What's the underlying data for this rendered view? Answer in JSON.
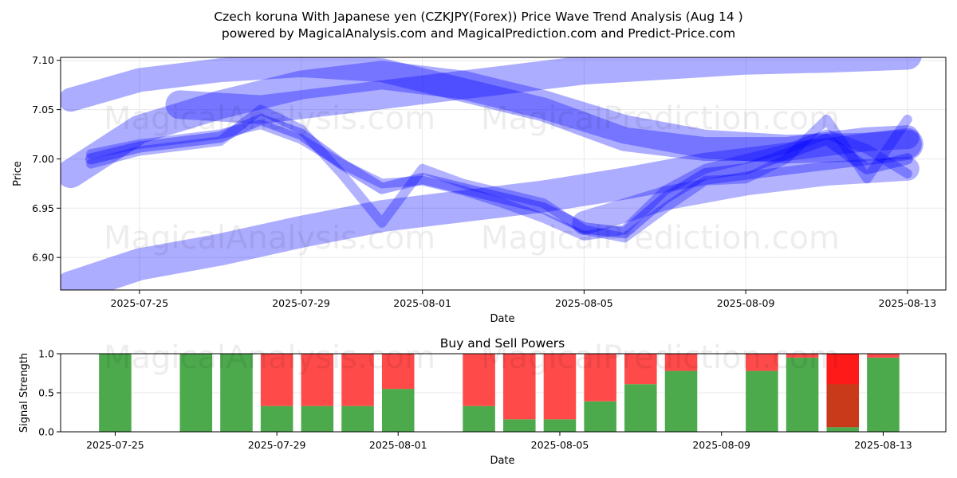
{
  "header": {
    "title_line1": "Czech koruna With Japanese yen (CZKJPY(Forex)) Price Wave Trend Analysis (Aug 14 )",
    "title_line2": "powered by MagicalAnalysis.com and MagicalPrediction.com and Predict-Price.com"
  },
  "watermarks": [
    "MagicalAnalysis.com",
    "MagicalPrediction.com"
  ],
  "colors": {
    "band": "#0000ff",
    "buy": "#4caa4c",
    "sell": "#ff4a4a",
    "sell_strong": "#ff1a1a",
    "mixed": "#c83a1a",
    "grid": "#e8e8e8"
  },
  "chart_data": [
    {
      "type": "line",
      "title": "",
      "xlabel": "Date",
      "ylabel": "Price",
      "ylim": [
        6.867,
        7.103
      ],
      "xlim_days": [
        -1.95,
        19.95
      ],
      "x_origin_date": "2025-07-25",
      "x_ticks": [
        {
          "day": 0,
          "label": "2025-07-25"
        },
        {
          "day": 4,
          "label": "2025-07-29"
        },
        {
          "day": 7,
          "label": "2025-08-01"
        },
        {
          "day": 11,
          "label": "2025-08-05"
        },
        {
          "day": 15,
          "label": "2025-08-09"
        },
        {
          "day": 19,
          "label": "2025-08-13"
        }
      ],
      "y_ticks": [
        6.9,
        6.95,
        7.0,
        7.05,
        7.1
      ],
      "y_tick_labels": [
        "6.90",
        "6.95",
        "7.00",
        "7.05",
        "7.10"
      ],
      "series": [
        {
          "name": "wave-band-upper",
          "width": 30,
          "opacity": 0.32,
          "x": [
            -1.7,
            0,
            2,
            4,
            6,
            8,
            10,
            12,
            14,
            16,
            18,
            19
          ],
          "y": [
            7.06,
            7.08,
            7.09,
            7.095,
            7.09,
            7.07,
            7.05,
            7.02,
            7.01,
            7.01,
            7.02,
            7.022
          ]
        },
        {
          "name": "wave-band-mid",
          "width": 36,
          "opacity": 0.32,
          "x": [
            -1.7,
            0,
            2,
            4,
            6,
            8,
            10,
            12,
            14,
            16,
            18,
            19
          ],
          "y": [
            6.985,
            7.03,
            7.055,
            7.075,
            7.085,
            7.075,
            7.055,
            7.03,
            7.015,
            7.01,
            7.012,
            7.015
          ]
        },
        {
          "name": "wave-band-upper-right",
          "width": 36,
          "opacity": 0.32,
          "x": [
            1,
            3,
            5,
            7,
            9,
            11,
            13,
            15,
            17,
            19
          ],
          "y": [
            7.055,
            7.05,
            7.06,
            7.07,
            7.08,
            7.09,
            7.095,
            7.1,
            7.102,
            7.105
          ]
        },
        {
          "name": "wave-band-lower",
          "width": 40,
          "opacity": 0.32,
          "x": [
            -1.7,
            0,
            2,
            4,
            6,
            8,
            10,
            12,
            14,
            16,
            18,
            19
          ],
          "y": [
            6.87,
            6.893,
            6.908,
            6.926,
            6.942,
            6.952,
            6.962,
            6.975,
            6.99,
            7.0,
            7.01,
            7.015
          ]
        },
        {
          "name": "wave-band-low-right",
          "width": 30,
          "opacity": 0.3,
          "x": [
            11,
            13,
            15,
            17,
            19
          ],
          "y": [
            6.935,
            6.96,
            6.975,
            6.985,
            6.99
          ]
        },
        {
          "name": "price-core-1",
          "width": 14,
          "opacity": 0.35,
          "x": [
            -1.2,
            0,
            2,
            3,
            4,
            5,
            6,
            7,
            8,
            9,
            10,
            11,
            12,
            13,
            14,
            15,
            16,
            17,
            18,
            19
          ],
          "y": [
            7.0,
            7.012,
            7.022,
            7.04,
            7.025,
            6.995,
            6.97,
            6.98,
            6.97,
            6.96,
            6.95,
            6.93,
            6.925,
            6.96,
            6.985,
            6.99,
            7.005,
            7.02,
            6.99,
            7.0
          ]
        },
        {
          "name": "price-core-2",
          "width": 12,
          "opacity": 0.3,
          "x": [
            -1.2,
            0,
            2,
            3,
            4,
            5,
            6,
            7,
            8,
            9,
            10,
            11,
            12,
            13,
            14,
            15,
            16,
            17,
            18,
            19
          ],
          "y": [
            6.995,
            7.008,
            7.018,
            7.05,
            7.03,
            6.985,
            6.935,
            6.99,
            6.975,
            6.965,
            6.955,
            6.928,
            6.92,
            6.95,
            6.978,
            6.98,
            7.0,
            7.04,
            6.98,
            7.04
          ]
        },
        {
          "name": "price-core-3",
          "width": 12,
          "opacity": 0.3,
          "x": [
            -1.2,
            0,
            2,
            3,
            4,
            5,
            6,
            7,
            8,
            9,
            10,
            11,
            12,
            13,
            14,
            15,
            16,
            17,
            18,
            19
          ],
          "y": [
            7.005,
            7.015,
            7.025,
            7.035,
            7.02,
            6.995,
            6.975,
            6.978,
            6.968,
            6.955,
            6.94,
            6.922,
            6.928,
            6.968,
            6.99,
            7.0,
            7.01,
            7.025,
            7.01,
            6.985
          ]
        }
      ]
    },
    {
      "type": "bar",
      "title": "Buy and Sell Powers",
      "xlabel": "Date",
      "ylabel": "Signal Strength",
      "ylim": [
        0,
        1
      ],
      "xlim_days": [
        -1.95,
        19.95
      ],
      "x_ticks": [
        {
          "day": 0,
          "label": "2025-07-25"
        },
        {
          "day": 4,
          "label": "2025-07-29"
        },
        {
          "day": 7,
          "label": "2025-08-01"
        },
        {
          "day": 11,
          "label": "2025-08-05"
        },
        {
          "day": 15,
          "label": "2025-08-09"
        },
        {
          "day": 19,
          "label": "2025-08-13"
        }
      ],
      "y_ticks": [
        0.0,
        0.5,
        1.0
      ],
      "y_tick_labels": [
        "0.0",
        "0.5",
        "1.0"
      ],
      "bars": [
        {
          "day": -0.6,
          "buy": 1.0,
          "sell": 0.0
        },
        {
          "day": 1.4,
          "buy": 1.0,
          "sell": 0.0
        },
        {
          "day": 2.4,
          "buy": 1.0,
          "sell": 0.0
        },
        {
          "day": 3.4,
          "buy": 0.33,
          "sell": 0.67
        },
        {
          "day": 4.4,
          "buy": 0.33,
          "sell": 0.67
        },
        {
          "day": 5.4,
          "buy": 0.33,
          "sell": 0.67
        },
        {
          "day": 6.4,
          "buy": 0.55,
          "sell": 0.45
        },
        {
          "day": 8.4,
          "buy": 0.33,
          "sell": 0.67
        },
        {
          "day": 9.4,
          "buy": 0.16,
          "sell": 0.84
        },
        {
          "day": 10.4,
          "buy": 0.16,
          "sell": 0.84
        },
        {
          "day": 11.4,
          "buy": 0.39,
          "sell": 0.61
        },
        {
          "day": 12.4,
          "buy": 0.61,
          "sell": 0.39
        },
        {
          "day": 13.4,
          "buy": 0.78,
          "sell": 0.22
        },
        {
          "day": 15.4,
          "buy": 0.78,
          "sell": 0.22
        },
        {
          "day": 16.4,
          "buy": 0.95,
          "sell": 0.05
        },
        {
          "day": 17.4,
          "buy": 0.06,
          "sell": 0.94,
          "mixed": 0.55
        },
        {
          "day": 18.4,
          "buy": 0.95,
          "sell": 0.05
        }
      ]
    }
  ]
}
